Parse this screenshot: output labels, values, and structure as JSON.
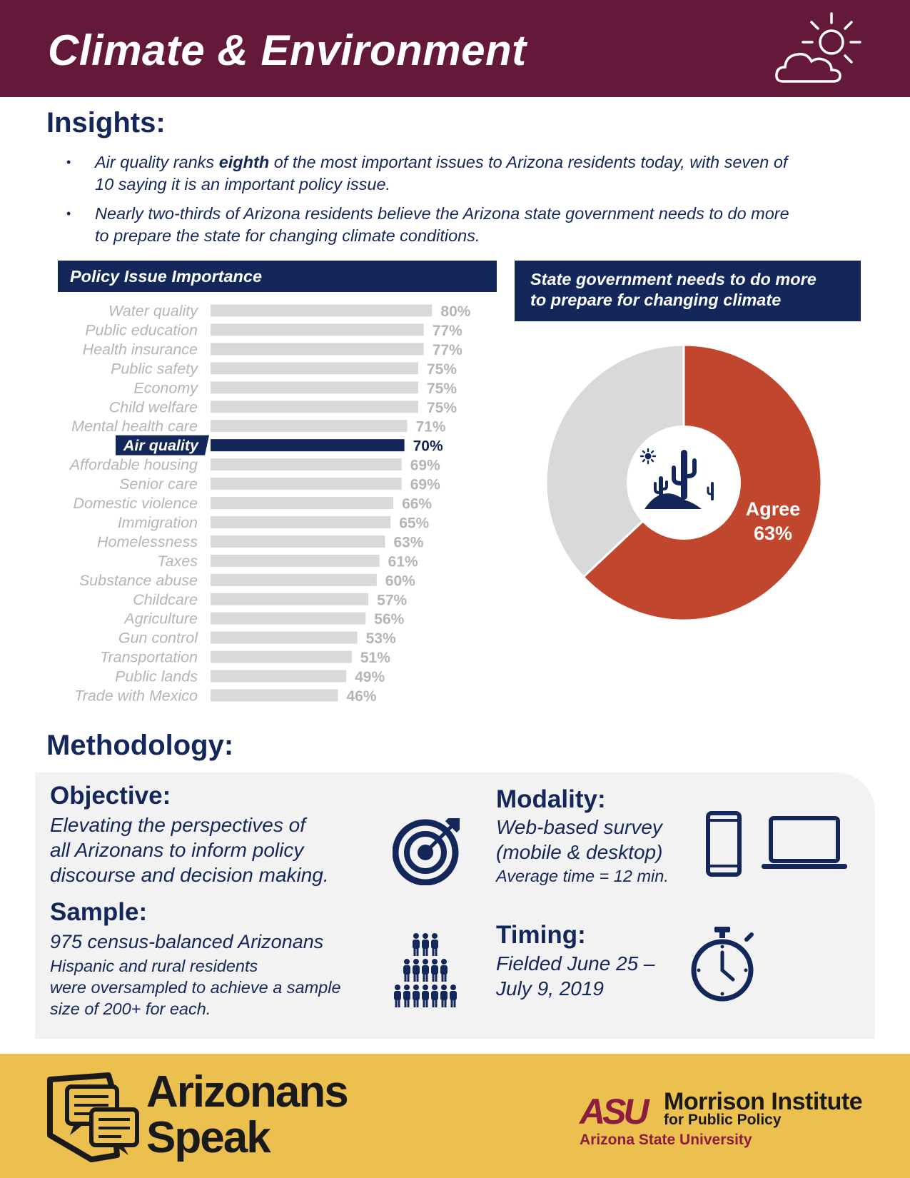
{
  "header": {
    "title": "Climate & Environment",
    "icon": "sun-cloud-icon"
  },
  "insights": {
    "title": "Insights:",
    "items": [
      {
        "pre": "Air quality ranks ",
        "bold": "eighth",
        "post": " of the most important issues to Arizona residents today, with seven of",
        "line2": "10 saying it is an important policy issue."
      },
      {
        "line1": "Nearly two-thirds of Arizona residents believe the Arizona state government needs to do more",
        "line2": "to prepare the state for changing climate conditions."
      }
    ]
  },
  "bar_chart_title": "Policy Issue Importance",
  "pie_chart_title": {
    "line1": "State government needs to do more",
    "line2": "to prepare for changing climate"
  },
  "chart_data": [
    {
      "type": "bar",
      "orientation": "horizontal",
      "title": "Policy Issue Importance",
      "categories": [
        "Water quality",
        "Public education",
        "Health insurance",
        "Public safety",
        "Economy",
        "Child welfare",
        "Mental health care",
        "Air quality",
        "Affordable housing",
        "Senior care",
        "Domestic violence",
        "Immigration",
        "Homelessness",
        "Taxes",
        "Substance abuse",
        "Childcare",
        "Agriculture",
        "Gun control",
        "Transportation",
        "Public lands",
        "Trade with Mexico"
      ],
      "values": [
        80,
        77,
        77,
        75,
        75,
        75,
        71,
        70,
        69,
        69,
        66,
        65,
        63,
        61,
        60,
        57,
        56,
        53,
        51,
        49,
        46
      ],
      "value_labels": [
        "80%",
        "77%",
        "77%",
        "75%",
        "75%",
        "75%",
        "71%",
        "70%",
        "69%",
        "69%",
        "66%",
        "65%",
        "63%",
        "61%",
        "60%",
        "57%",
        "56%",
        "53%",
        "51%",
        "49%",
        "46%"
      ],
      "highlight": "Air quality",
      "colors": {
        "bar": "#d9d9d9",
        "highlight": "#14275a",
        "label": "#b5b5b5"
      }
    },
    {
      "type": "pie",
      "style": "donut",
      "title": "State government needs to do more to prepare for changing climate",
      "slices": [
        {
          "label": "Agree",
          "value": 63,
          "value_label": "63%",
          "color": "#c0472d"
        },
        {
          "label": "",
          "value": 37,
          "color": "#d9d9d9"
        }
      ],
      "center_icon": "desert-cactus-icon"
    }
  ],
  "methodology": {
    "title": "Methodology:",
    "objective": {
      "head": "Objective:",
      "lines": [
        "Elevating the perspectives of",
        "all Arizonans to inform policy",
        "discourse and decision making."
      ],
      "icon": "target-icon"
    },
    "sample": {
      "head": "Sample:",
      "line1": "975 census-balanced Arizonans",
      "lines": [
        "Hispanic and rural residents",
        "were oversampled to achieve a sample",
        "size of 200+ for each."
      ],
      "icon": "people-pyramid-icon"
    },
    "modality": {
      "head": "Modality:",
      "lines": [
        "Web-based survey",
        "(mobile & desktop)"
      ],
      "note": "Average time = 12 min.",
      "icons": [
        "mobile-phone-icon",
        "laptop-icon"
      ]
    },
    "timing": {
      "head": "Timing:",
      "lines": [
        "Fielded June 25 –",
        "July 9, 2019"
      ],
      "icon": "stopwatch-icon"
    }
  },
  "footer": {
    "brand": {
      "line1": "Arizonans",
      "line2": "Speak",
      "icon": "arizona-speech-icon"
    },
    "asu": "ASU",
    "institute": "Morrison Institute",
    "institute_sub": "for Public Policy",
    "university": "Arizona State University"
  }
}
